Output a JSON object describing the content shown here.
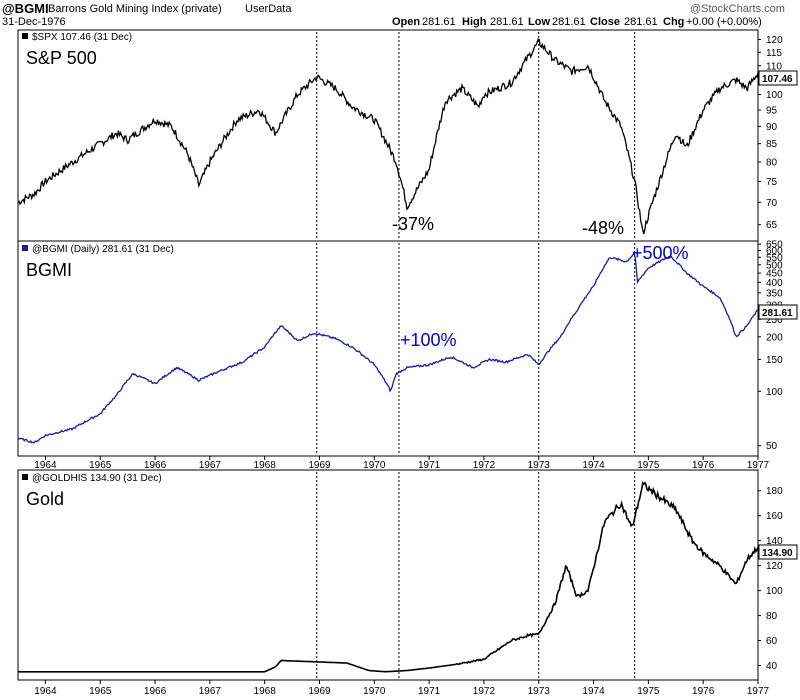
{
  "header": {
    "ticker": "@BGMI",
    "name": "Barrons Gold Mining Index (private)",
    "source": "UserData",
    "date": "31-Dec-1976",
    "open_label": "Open",
    "open": "281.61",
    "high_label": "High",
    "high": "281.61",
    "low_label": "Low",
    "low": "281.61",
    "close_label": "Close",
    "close": "281.61",
    "chg_label": "Chg",
    "chg": "+0.00 (+0.00%)",
    "logo": "@StockCharts.com"
  },
  "panels": {
    "spx": {
      "legend": "$SPX 107.46 (31 Dec)",
      "label": "S&P 500",
      "last": "107.46"
    },
    "bgmi": {
      "legend": "@BGMI (Daily) 281.61 (31 Dec)",
      "label": "BGMI",
      "last": "281.61"
    },
    "gold": {
      "legend": "@GOLDHIS 134.90 (31 Dec)",
      "label": "Gold",
      "last": "134.90"
    }
  },
  "annotations": {
    "spx_drop1": "-37%",
    "spx_drop2": "-48%",
    "bgmi_gain1": "+100%",
    "bgmi_gain2": "+500%"
  },
  "colors": {
    "spx": "#000000",
    "bgmi": "#1a1a9a",
    "gold": "#000000",
    "annotation_blue": "#0000cc",
    "grid": "#000000"
  },
  "chart_data": [
    {
      "type": "line",
      "title": "$SPX 107.46 (31 Dec)",
      "series": [
        {
          "name": "S&P 500",
          "x": [
            1963.5,
            1963.8,
            1964.0,
            1964.5,
            1965.0,
            1965.3,
            1965.5,
            1966.0,
            1966.3,
            1966.6,
            1966.8,
            1967.0,
            1967.5,
            1967.9,
            1968.2,
            1968.6,
            1968.95,
            1969.3,
            1969.6,
            1970.0,
            1970.4,
            1970.6,
            1971.0,
            1971.3,
            1971.6,
            1971.9,
            1972.0,
            1972.5,
            1973.0,
            1973.3,
            1973.6,
            1973.9,
            1974.2,
            1974.5,
            1974.75,
            1974.9,
            1975.2,
            1975.5,
            1975.7,
            1976.0,
            1976.3,
            1976.6,
            1976.8,
            1977.0
          ],
          "y": [
            70,
            72,
            75,
            80,
            85,
            88,
            86,
            92,
            90,
            82,
            74,
            80,
            92,
            95,
            88,
            100,
            106,
            102,
            96,
            92,
            80,
            69,
            78,
            98,
            102,
            96,
            100,
            104,
            119,
            112,
            108,
            110,
            98,
            90,
            75,
            63,
            75,
            88,
            84,
            95,
            102,
            105,
            102,
            107.46
          ]
        }
      ],
      "ylim": [
        62,
        123
      ],
      "yscale": "log",
      "yticks": [
        65,
        70,
        75,
        80,
        85,
        90,
        95,
        100,
        105,
        110,
        115,
        120
      ]
    },
    {
      "type": "line",
      "title": "@BGMI (Daily) 281.61 (31 Dec)",
      "series": [
        {
          "name": "BGMI",
          "x": [
            1963.5,
            1963.8,
            1964.0,
            1964.5,
            1965.0,
            1965.3,
            1965.6,
            1966.0,
            1966.4,
            1966.8,
            1967.2,
            1967.6,
            1968.0,
            1968.3,
            1968.6,
            1968.9,
            1969.3,
            1969.6,
            1970.0,
            1970.3,
            1970.4,
            1970.6,
            1971.0,
            1971.4,
            1971.8,
            1972.1,
            1972.4,
            1972.8,
            1973.0,
            1973.4,
            1973.7,
            1974.0,
            1974.3,
            1974.6,
            1974.75,
            1974.8,
            1975.0,
            1975.4,
            1975.7,
            1976.0,
            1976.3,
            1976.6,
            1976.8,
            1977.0
          ],
          "y": [
            55,
            52,
            57,
            62,
            75,
            95,
            125,
            110,
            135,
            115,
            130,
            145,
            175,
            230,
            190,
            210,
            195,
            175,
            140,
            100,
            125,
            135,
            140,
            155,
            135,
            150,
            145,
            160,
            140,
            200,
            280,
            380,
            550,
            520,
            580,
            400,
            480,
            560,
            450,
            380,
            330,
            200,
            230,
            281.61
          ]
        }
      ],
      "ylim": [
        45,
        660
      ],
      "yscale": "log",
      "yticks": [
        50,
        100,
        150,
        200,
        250,
        300,
        350,
        400,
        450,
        500,
        550,
        600,
        650
      ],
      "xticks": [
        "1964",
        "1965",
        "1966",
        "1967",
        "1968",
        "1969",
        "1970",
        "1971",
        "1972",
        "1973",
        "1974",
        "1975",
        "1976",
        "1977"
      ]
    },
    {
      "type": "line",
      "title": "@GOLDHIS 134.90 (31 Dec)",
      "series": [
        {
          "name": "Gold",
          "x": [
            1963.5,
            1964.0,
            1965.0,
            1966.0,
            1967.0,
            1968.0,
            1968.2,
            1968.3,
            1968.9,
            1969.5,
            1969.9,
            1970.2,
            1970.6,
            1971.0,
            1971.5,
            1972.0,
            1972.5,
            1972.8,
            1973.0,
            1973.3,
            1973.5,
            1973.7,
            1973.9,
            1974.2,
            1974.5,
            1974.7,
            1974.9,
            1975.2,
            1975.5,
            1975.8,
            1976.0,
            1976.3,
            1976.6,
            1976.8,
            1977.0
          ],
          "y": [
            35,
            35,
            35,
            35,
            35,
            35,
            39,
            44,
            43,
            42,
            36,
            35,
            36,
            38,
            41,
            45,
            60,
            64,
            65,
            90,
            120,
            95,
            100,
            155,
            170,
            150,
            185,
            175,
            165,
            140,
            130,
            120,
            105,
            125,
            134.9
          ]
        }
      ],
      "ylim": [
        30,
        195
      ],
      "yscale": "linear",
      "yticks": [
        40,
        60,
        80,
        100,
        120,
        140,
        160,
        180
      ],
      "xticks": [
        "1964",
        "1965",
        "1966",
        "1967",
        "1968",
        "1969",
        "1970",
        "1971",
        "1972",
        "1973",
        "1974",
        "1975",
        "1976",
        "1977"
      ]
    }
  ],
  "vertical_markers": [
    1968.95,
    1970.45,
    1973.0,
    1974.75
  ]
}
